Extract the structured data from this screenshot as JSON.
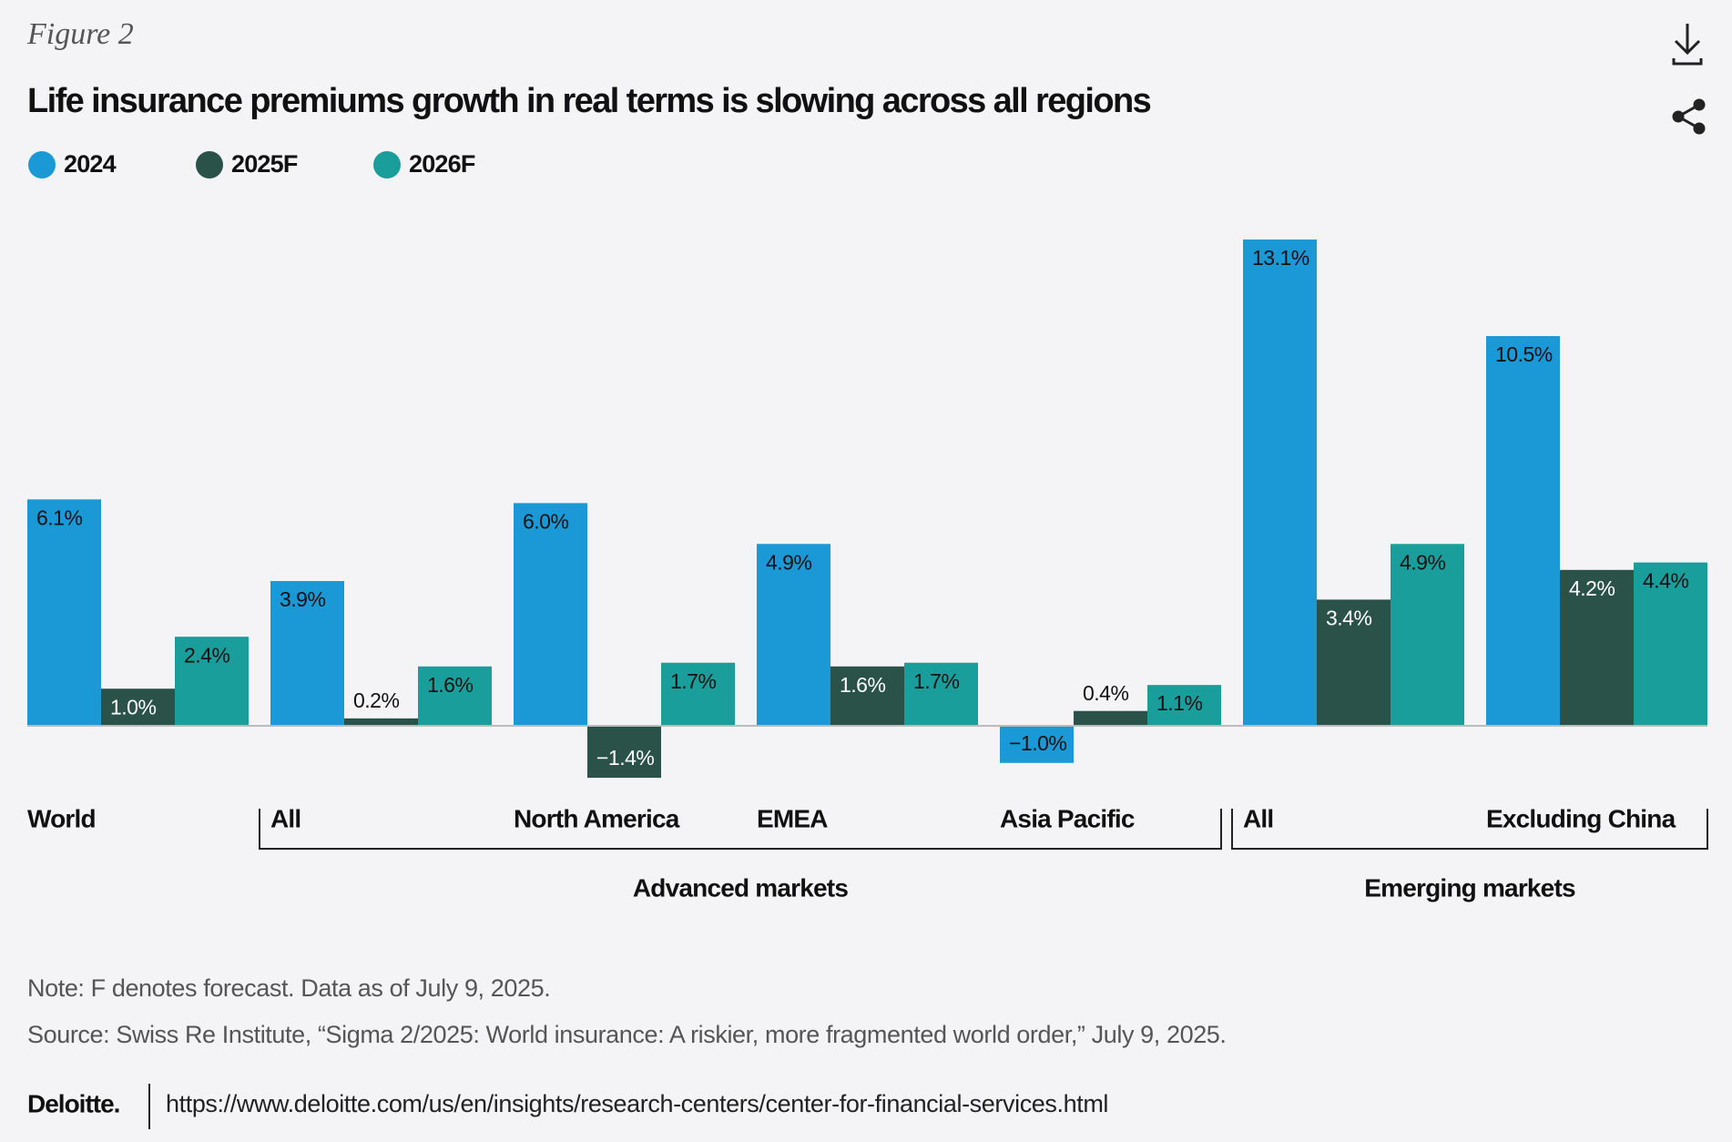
{
  "chart_data": {
    "type": "bar",
    "figure_label": "Figure 2",
    "title": "Life insurance premiums growth in real terms is slowing across all regions",
    "categories": [
      "World",
      "All",
      "North America",
      "EMEA",
      "Asia Pacific",
      "All",
      "Excluding China"
    ],
    "groups": [
      "Advanced markets",
      "Emerging markets"
    ],
    "series": [
      {
        "name": "2024",
        "color": "#1b98d6",
        "values": [
          6.1,
          3.9,
          6.0,
          4.9,
          -1.0,
          13.1,
          10.5
        ],
        "value_labels": [
          "6.1%",
          "3.9%",
          "6.0%",
          "4.9%",
          "−1.0%",
          "13.1%",
          "10.5%"
        ]
      },
      {
        "name": "2025F",
        "color": "#2a5248",
        "values": [
          1.0,
          0.2,
          -1.4,
          1.6,
          0.4,
          3.4,
          4.2
        ],
        "value_labels": [
          "1.0%",
          "0.2%",
          "−1.4%",
          "1.6%",
          "0.4%",
          "3.4%",
          "4.2%"
        ]
      },
      {
        "name": "2026F",
        "color": "#1a9e9c",
        "values": [
          2.4,
          1.6,
          1.7,
          1.7,
          1.1,
          4.9,
          4.4
        ],
        "value_labels": [
          "2.4%",
          "1.6%",
          "1.7%",
          "1.7%",
          "1.1%",
          "4.9%",
          "4.4%"
        ]
      }
    ],
    "note": "Note: F denotes forecast. Data as of July 9, 2025.",
    "source": "Source: Swiss Re Institute, “Sigma 2/2025: World insurance: A riskier, more fragmented world order,” July 9, 2025.",
    "brand": "Deloitte.",
    "url": "https://www.deloitte.com/us/en/insights/research-centers/center-for-financial-services.html"
  }
}
